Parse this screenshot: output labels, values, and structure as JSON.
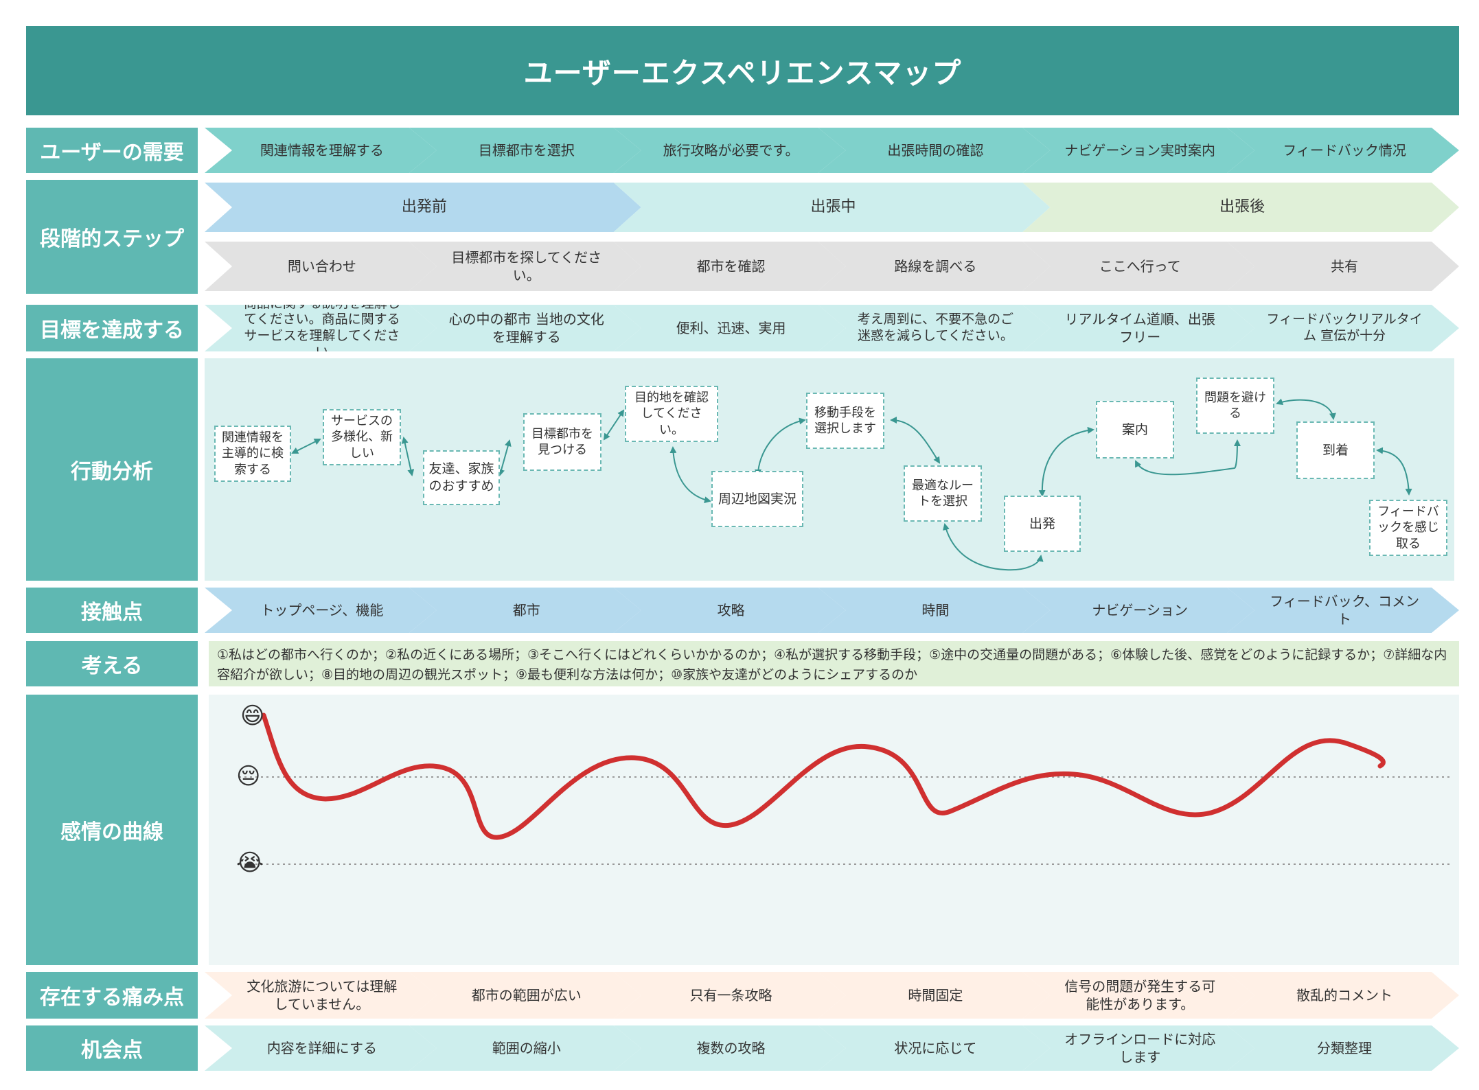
{
  "title": "ユーザーエクスペリエンスマップ",
  "labels": {
    "needs": "ユーザーの需要",
    "steps": "段階的ステップ",
    "goals": "目標を達成する",
    "actions": "行動分析",
    "touchpoints": "接触点",
    "thoughts": "考える",
    "emotion": "感情の曲線",
    "pain": "存在する痛み点",
    "opportunity": "机会点"
  },
  "needs": [
    "関連情報を理解する",
    "目標都市を選択",
    "旅行攻略が必要です。",
    "出張時間の確認",
    "ナビゲーション実时案内",
    "フィードバック情况"
  ],
  "phases": [
    "出発前",
    "出張中",
    "出張後"
  ],
  "steps": [
    "問い合わせ",
    "目標都市を探してください。",
    "都市を確認",
    "路線を調べる",
    "ここへ行って",
    "共有"
  ],
  "goals": [
    "商品に関する説明を理解してください。商品に関するサービスを理解してください",
    "心の中の都市 当地の文化を理解する",
    "便利、迅速、実用",
    "考え周到に、不要不急のご迷惑を減らしてください。",
    "リアルタイム道順、出張フリー",
    "フィードバックリアルタイム 宣伝が十分"
  ],
  "actions": [
    "関連情報を主導的に検索する",
    "サービスの多様化、新しい",
    "友達、家族のおすすめ",
    "目標都市を見つける",
    "目的地を確認してください。",
    "周辺地図実況",
    "移動手段を選択します",
    "最適なルートを選択",
    "出発",
    "案内",
    "問題を避ける",
    "到着",
    "フィードバックを感じ取る"
  ],
  "touchpoints": [
    "トップページ、機能",
    "都市",
    "攻略",
    "時間",
    "ナビゲーション",
    "フィードバック、コメント"
  ],
  "thoughts": "①私はどの都市へ行くのか；②私の近くにある場所；③そこへ行くにはどれくらいかかるのか；④私が選択する移動手段；⑤途中の交通量の問題がある；⑥体験した後、感覚をどのように記録するか；⑦詳細な内容紹介が欲しい；⑧目的地の周辺の観光スポット；⑨最も便利な方法は何か；⑩家族や友達がどのようにシェアするのか",
  "pain_points": [
    "文化旅游については理解していません。",
    "都市の範囲が広い",
    "只有一条攻略",
    "時間固定",
    "信号の問題が発生する可能性があります。",
    "散乱的コメント"
  ],
  "opportunities": [
    "内容を詳細にする",
    "範囲の縮小",
    "複数の攻略",
    "状况に応じて",
    "オフラインロードに対応します",
    "分類整理"
  ],
  "emotion_icons": [
    "😄",
    "😔",
    "😭"
  ],
  "colors": {
    "header": "#3a9791",
    "label": "#5fb8b2",
    "phase_before": "#b3d9ee",
    "phase_during": "#cdeeed",
    "phase_after": "#e0f0d8",
    "curve": "#d03030"
  }
}
